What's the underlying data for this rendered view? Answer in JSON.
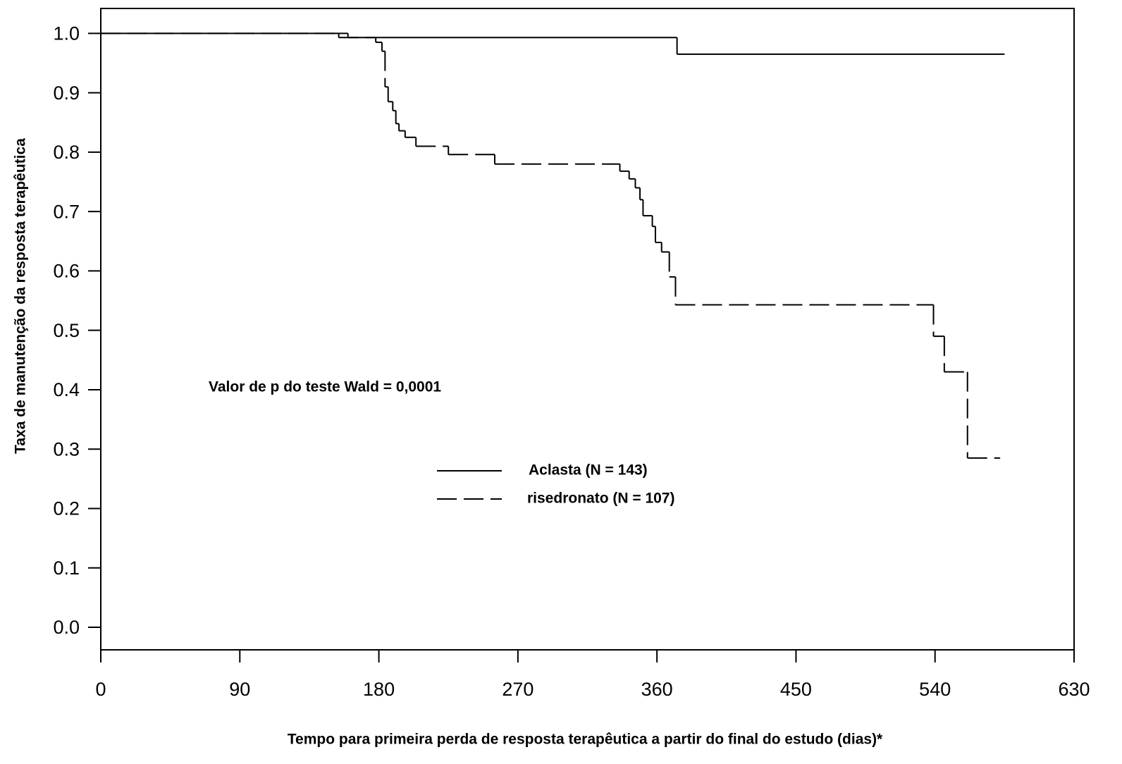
{
  "chart_data": {
    "type": "step",
    "y_label": "Taxa de manutenção da resposta terapêutica",
    "x_label": "Tempo para primeira perda de resposta terapêutica a partir do final do estudo (dias)*",
    "annotation": "Valor de p do teste Wald = 0,0001",
    "xlim": [
      0,
      630
    ],
    "xticks": [
      0,
      90,
      180,
      270,
      360,
      450,
      540,
      630
    ],
    "ylim": [
      -0.038,
      1.042
    ],
    "yticks": [
      {
        "value": 0,
        "label": "0.0"
      },
      0.1,
      0.2,
      0.3,
      0.4,
      0.5,
      0.6,
      0.7,
      0.8,
      0.9,
      {
        "value": 1,
        "label": "1.0"
      }
    ],
    "series": [
      {
        "name": "Aclasta (N = 143)",
        "color": "#000000",
        "dash": "solid",
        "x": [
          0,
          160,
          373,
          585
        ],
        "values": [
          1.0,
          0.993,
          0.965,
          0.965
        ]
      },
      {
        "name": "risedronato (N = 107)",
        "color": "#000000",
        "dash": "dashed",
        "x": [
          0,
          154,
          178,
          182,
          184,
          186,
          189,
          191,
          193,
          197,
          204,
          225,
          255,
          336,
          342,
          346,
          349,
          351,
          357,
          359,
          363,
          368,
          372,
          539,
          546,
          561,
          582
        ],
        "values": [
          1.0,
          0.993,
          0.985,
          0.97,
          0.91,
          0.885,
          0.87,
          0.848,
          0.836,
          0.825,
          0.81,
          0.796,
          0.78,
          0.768,
          0.755,
          0.74,
          0.72,
          0.693,
          0.675,
          0.648,
          0.632,
          0.59,
          0.543,
          0.49,
          0.43,
          0.285,
          0.285
        ]
      }
    ]
  }
}
